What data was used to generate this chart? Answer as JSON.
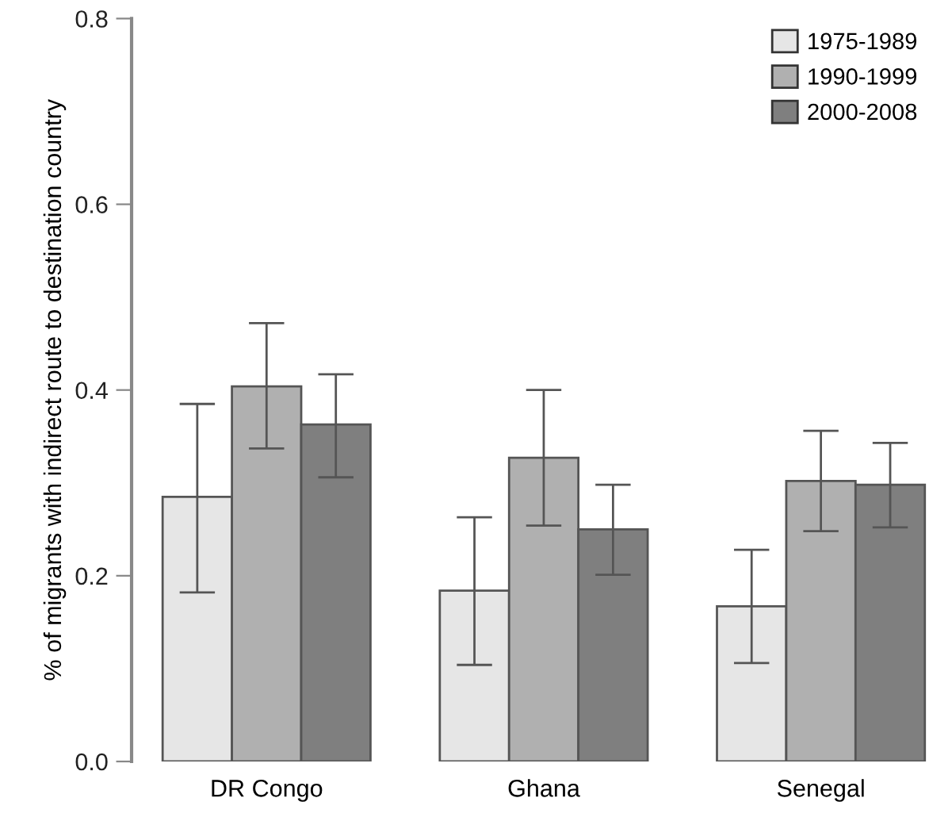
{
  "chart_data": {
    "type": "bar",
    "ylabel": "% of migrants with indirect route to destination country",
    "categories": [
      "DR Congo",
      "Ghana",
      "Senegal"
    ],
    "series": [
      {
        "name": "1975-1989",
        "color": "#e6e6e6",
        "values": [
          0.285,
          0.184,
          0.167
        ],
        "errors": [
          [
            0.182,
            0.385
          ],
          [
            0.104,
            0.263
          ],
          [
            0.106,
            0.228
          ]
        ]
      },
      {
        "name": "1990-1999",
        "color": "#b0b0b0",
        "values": [
          0.404,
          0.327,
          0.302
        ],
        "errors": [
          [
            0.337,
            0.472
          ],
          [
            0.254,
            0.4
          ],
          [
            0.248,
            0.356
          ]
        ]
      },
      {
        "name": "2000-2008",
        "color": "#7f7f7f",
        "values": [
          0.363,
          0.25,
          0.298
        ],
        "errors": [
          [
            0.306,
            0.417
          ],
          [
            0.201,
            0.298
          ],
          [
            0.252,
            0.343
          ]
        ]
      }
    ],
    "ylim": [
      0,
      0.8
    ],
    "yticks": [
      {
        "value": 0,
        "label": "0.0"
      },
      0.2,
      0.4,
      0.6,
      0.8
    ],
    "grid": false,
    "legend": "top right"
  }
}
